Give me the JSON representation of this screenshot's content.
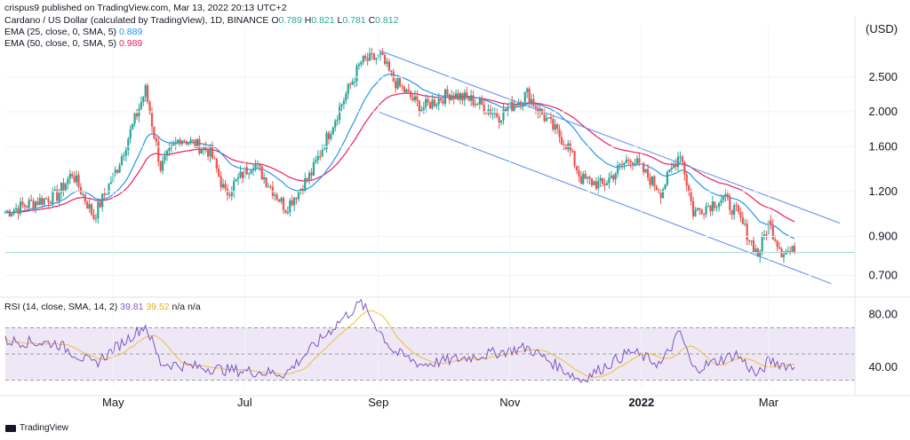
{
  "header": {
    "publisher": "crispus9 published on TradingView.com, Mar 13, 2022 20:13 UTC+2",
    "symbol_line": "Cardano / US Dollar (calculated by TradingView), 1D, BINANCE",
    "ohlc": {
      "o_label": "O",
      "o": "0.789",
      "h_label": "H",
      "h": "0.821",
      "l_label": "L",
      "l": "0.781",
      "c_label": "C",
      "c": "0.812"
    },
    "ema25_label": "EMA (25, close, 0, SMA, 5)",
    "ema25_value": "0.889",
    "ema50_label": "EMA (50, close, 0, SMA, 5)",
    "ema50_value": "0.989",
    "rsi_label": "RSI (14, close, SMA, 14, 2)",
    "rsi_value": "39.81",
    "rsi_sma_value": "39.52",
    "rsi_na1": "n/a",
    "rsi_na2": "n/a",
    "currency": "USD"
  },
  "footer": {
    "brand": "TradingView"
  },
  "colors": {
    "up": "#26a69a",
    "down": "#ef5350",
    "ema25": "#2196f3",
    "ema50": "#e91e63",
    "channel": "#5b8def",
    "rsi_line": "#7e57c2",
    "rsi_sma": "#f0c040",
    "rsi_band": "#ede7f6"
  },
  "chart_data": [
    {
      "type": "candlestick",
      "title": "Cardano / US Dollar (calculated by TradingView), 1D, BINANCE",
      "scale": "log",
      "ylim": [
        0.62,
        3.3
      ],
      "yticks": [
        "2.500",
        "2.000",
        "1.600",
        "1.200",
        "0.900",
        "0.700"
      ],
      "ytick_values": [
        2.5,
        2.0,
        1.6,
        1.2,
        0.9,
        0.7
      ],
      "xticks": [
        "May",
        "Jul",
        "Sep",
        "Nov",
        "2022",
        "Mar"
      ],
      "xtick_dates": [
        "2021-05-01",
        "2021-07-01",
        "2021-09-01",
        "2021-11-01",
        "2022-01-01",
        "2022-03-01"
      ],
      "x_range": [
        "2021-03-12",
        "2022-04-10"
      ],
      "last_close": 0.812,
      "anchors": [
        [
          "2021-03-12",
          1.05
        ],
        [
          "2021-03-25",
          1.12
        ],
        [
          "2021-04-05",
          1.17
        ],
        [
          "2021-04-12",
          1.35
        ],
        [
          "2021-04-22",
          1.02
        ],
        [
          "2021-05-03",
          1.4
        ],
        [
          "2021-05-16",
          2.3
        ],
        [
          "2021-05-23",
          1.4
        ],
        [
          "2021-06-01",
          1.7
        ],
        [
          "2021-06-15",
          1.55
        ],
        [
          "2021-06-22",
          1.18
        ],
        [
          "2021-07-05",
          1.45
        ],
        [
          "2021-07-20",
          1.08
        ],
        [
          "2021-08-01",
          1.35
        ],
        [
          "2021-08-14",
          2.05
        ],
        [
          "2021-08-24",
          2.75
        ],
        [
          "2021-09-02",
          2.85
        ],
        [
          "2021-09-08",
          2.45
        ],
        [
          "2021-09-21",
          2.05
        ],
        [
          "2021-10-04",
          2.25
        ],
        [
          "2021-10-15",
          2.15
        ],
        [
          "2021-10-27",
          1.95
        ],
        [
          "2021-11-09",
          2.25
        ],
        [
          "2021-11-15",
          2.0
        ],
        [
          "2021-11-28",
          1.6
        ],
        [
          "2021-12-04",
          1.3
        ],
        [
          "2021-12-14",
          1.25
        ],
        [
          "2021-12-27",
          1.5
        ],
        [
          "2022-01-10",
          1.2
        ],
        [
          "2022-01-19",
          1.55
        ],
        [
          "2022-01-25",
          1.05
        ],
        [
          "2022-02-08",
          1.15
        ],
        [
          "2022-02-14",
          1.05
        ],
        [
          "2022-02-24",
          0.8
        ],
        [
          "2022-03-01",
          0.98
        ],
        [
          "2022-03-07",
          0.82
        ],
        [
          "2022-03-13",
          0.812
        ]
      ],
      "series": [
        {
          "name": "EMA (25, close, 0, SMA, 5)",
          "last": 0.889
        },
        {
          "name": "EMA (50, close, 0, SMA, 5)",
          "last": 0.989
        }
      ],
      "channel": {
        "upper": [
          [
            "2021-09-01",
            2.97
          ],
          [
            "2022-04-03",
            0.98
          ]
        ],
        "lower": [
          [
            "2021-09-01",
            2.0
          ],
          [
            "2022-03-30",
            0.665
          ]
        ]
      },
      "horizontal_line": 0.812
    },
    {
      "type": "line",
      "title": "RSI (14, close, SMA, 14, 2)",
      "ylim": [
        25,
        92
      ],
      "yticks": [
        "80.00",
        "40.00"
      ],
      "ytick_values": [
        80,
        40
      ],
      "band": [
        30,
        70
      ],
      "midline": 50,
      "anchors": [
        [
          "2021-03-12",
          60
        ],
        [
          "2021-04-05",
          58
        ],
        [
          "2021-04-22",
          42
        ],
        [
          "2021-05-16",
          72
        ],
        [
          "2021-05-23",
          43
        ],
        [
          "2021-06-22",
          38
        ],
        [
          "2021-07-20",
          35
        ],
        [
          "2021-08-14",
          75
        ],
        [
          "2021-08-24",
          89
        ],
        [
          "2021-09-08",
          52
        ],
        [
          "2021-09-21",
          42
        ],
        [
          "2021-10-15",
          48
        ],
        [
          "2021-11-09",
          55
        ],
        [
          "2021-12-04",
          30
        ],
        [
          "2021-12-27",
          52
        ],
        [
          "2022-01-10",
          42
        ],
        [
          "2022-01-19",
          67
        ],
        [
          "2022-01-25",
          38
        ],
        [
          "2022-02-14",
          50
        ],
        [
          "2022-02-24",
          33
        ],
        [
          "2022-03-01",
          45
        ],
        [
          "2022-03-13",
          39.81
        ]
      ],
      "series": [
        {
          "name": "RSI (14, close, SMA, 14, 2)",
          "last": 39.81
        },
        {
          "name": "SMA",
          "last": 39.52
        }
      ]
    }
  ]
}
